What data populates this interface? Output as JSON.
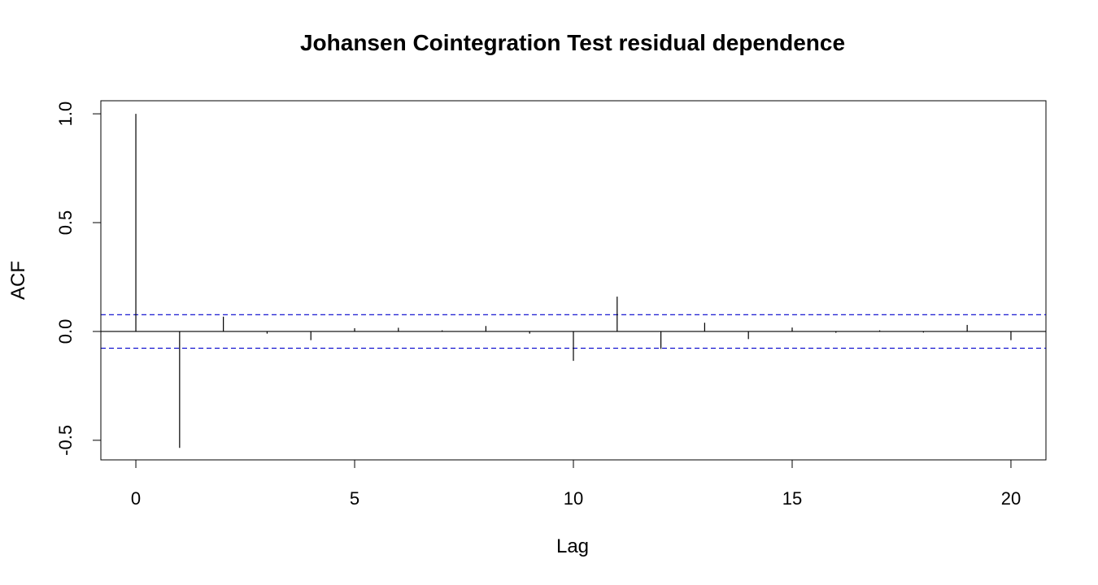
{
  "chart_data": {
    "type": "bar",
    "title": "Johansen Cointegration Test residual dependence",
    "xlabel": "Lag",
    "ylabel": "ACF",
    "xlim": [
      -0.8,
      20.8
    ],
    "ylim": [
      -0.59,
      1.06
    ],
    "x_ticks": [
      0,
      5,
      10,
      15,
      20
    ],
    "x_tick_labels": [
      "0",
      "5",
      "10",
      "15",
      "20"
    ],
    "y_ticks": [
      -0.5,
      0.0,
      0.5,
      1.0
    ],
    "y_tick_labels": [
      "-0.5",
      "0.0",
      "0.5",
      "1.0"
    ],
    "lags": [
      0,
      1,
      2,
      3,
      4,
      5,
      6,
      7,
      8,
      9,
      10,
      11,
      12,
      13,
      14,
      15,
      16,
      17,
      18,
      19,
      20
    ],
    "acf": [
      1.0,
      -0.535,
      0.068,
      -0.01,
      -0.04,
      0.015,
      0.017,
      0.005,
      0.025,
      -0.01,
      -0.135,
      0.16,
      -0.08,
      0.04,
      -0.035,
      0.018,
      -0.006,
      0.005,
      -0.005,
      0.03,
      -0.04
    ],
    "confidence_bound": 0.077,
    "grid": false,
    "legend": "none",
    "colors": {
      "bars": "#000000",
      "zero_line": "#000000",
      "confidence_lines": "#0000cc"
    }
  }
}
